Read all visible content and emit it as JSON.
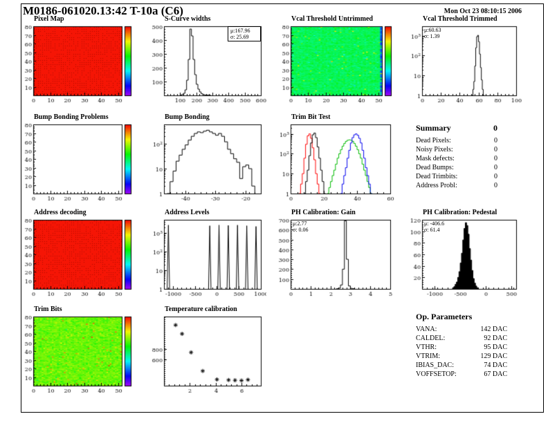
{
  "page": {
    "title": "M0186-061020.13:42 T-10a (C6)",
    "datetime": "Mon Oct 23 08:10:15 2006"
  },
  "summary": {
    "title": "Summary",
    "total": "0",
    "rows": [
      {
        "label": "Dead Pixels:",
        "value": "0"
      },
      {
        "label": "Noisy Pixels:",
        "value": "0"
      },
      {
        "label": "Mask defects:",
        "value": "0"
      },
      {
        "label": "Dead Bumps:",
        "value": "0"
      },
      {
        "label": "Dead Trimbits:",
        "value": "0"
      },
      {
        "label": "Address Probl:",
        "value": "0"
      }
    ]
  },
  "op_parameters": {
    "title": "Op. Parameters",
    "rows": [
      {
        "label": "VANA:",
        "value": "142 DAC"
      },
      {
        "label": "CALDEL:",
        "value": "92 DAC"
      },
      {
        "label": "VTHR:",
        "value": "95 DAC"
      },
      {
        "label": "VTRIM:",
        "value": "129 DAC"
      },
      {
        "label": "IBIAS_DAC:",
        "value": "74 DAC"
      },
      {
        "label": "VOFFSETOP:",
        "value": "67 DAC"
      }
    ]
  },
  "chart_data": [
    {
      "id": "pixel_map",
      "type": "heatmap",
      "title": "Pixel Map",
      "style": "uniform-red",
      "cols": 52,
      "rows": 80,
      "xlim": [
        0,
        52
      ],
      "ylim": [
        0,
        80
      ],
      "x_ticks": [
        0,
        10,
        20,
        30,
        40,
        50
      ],
      "y_ticks": [
        10,
        20,
        30,
        40,
        50,
        60,
        70,
        80
      ],
      "colorbar": true,
      "seed": 3,
      "value_color": "#ee1100"
    },
    {
      "id": "scurve_widths",
      "type": "histogram",
      "title": "S-Curve widths",
      "xlim": [
        0,
        600
      ],
      "x_ticks": [
        100,
        200,
        300,
        400,
        500,
        600
      ],
      "ylim": [
        0,
        500
      ],
      "y_ticks": [
        100,
        200,
        300,
        400,
        500
      ],
      "stats": {
        "mu": "μ:167.96",
        "sigma": "σ: 25.69"
      },
      "series": [
        {
          "color": "#000000",
          "bins": {
            "start": 100,
            "width": 10,
            "counts": [
              3,
              6,
              15,
              40,
              110,
              260,
              480,
              430,
              260,
              150,
              80,
              45,
              25,
              12,
              6,
              3,
              2,
              1,
              1
            ]
          }
        }
      ]
    },
    {
      "id": "vcal_untrimmed",
      "type": "heatmap",
      "title": "Vcal Threshold Untrimmed",
      "style": "noise",
      "base": 0.5,
      "spread": 0.07,
      "edge_cool": true,
      "cols": 52,
      "rows": 80,
      "xlim": [
        0,
        52
      ],
      "ylim": [
        0,
        80
      ],
      "x_ticks": [
        0,
        10,
        20,
        30,
        40,
        50
      ],
      "y_ticks": [
        10,
        20,
        30,
        40,
        50,
        60,
        70,
        80
      ],
      "colorbar": true,
      "seed": 17
    },
    {
      "id": "vcal_trimmed",
      "type": "histogram",
      "title": "Vcal Threshold Trimmed",
      "xlim": [
        0,
        100
      ],
      "x_ticks": [
        0,
        20,
        40,
        60,
        80,
        100
      ],
      "ylog": true,
      "ylim": [
        1,
        3000
      ],
      "y_ticks": [
        [
          1,
          "1"
        ],
        [
          10,
          "10"
        ],
        [
          100,
          "10^2"
        ],
        [
          1000,
          "10^3"
        ]
      ],
      "stats": {
        "mu": "μ:60.63",
        "sigma": "σ: 1.39"
      },
      "series": [
        {
          "color": "#000000",
          "bins": {
            "start": 53,
            "width": 1,
            "counts": [
              1,
              2,
              5,
              30,
              250,
              900,
              1050,
              500,
              120,
              25,
              6,
              2,
              1
            ]
          }
        }
      ]
    },
    {
      "id": "bump_problems",
      "type": "heatmap",
      "title": "Bump Bonding Problems",
      "style": "empty",
      "cols": 52,
      "rows": 80,
      "xlim": [
        0,
        52
      ],
      "ylim": [
        0,
        80
      ],
      "x_ticks": [
        0,
        10,
        20,
        30,
        40,
        50
      ],
      "y_ticks": [
        10,
        20,
        30,
        40,
        50,
        60,
        70,
        80
      ],
      "colorbar": true,
      "seed": 1
    },
    {
      "id": "bump_bonding",
      "type": "histogram",
      "title": "Bump Bonding",
      "xlim": [
        -47,
        -15
      ],
      "x_ticks": [
        -40,
        -30,
        -20
      ],
      "ylog": true,
      "ylim": [
        1,
        600
      ],
      "y_ticks": [
        [
          1,
          "1"
        ],
        [
          10,
          "10"
        ],
        [
          100,
          "10^2"
        ]
      ],
      "series": [
        {
          "color": "#000000",
          "bins": {
            "start": -46,
            "width": 1,
            "counts": [
              1,
              3,
              8,
              20,
              35,
              60,
              90,
              140,
              200,
              260,
              300,
              280,
              320,
              350,
              300,
              260,
              220,
              260,
              200,
              120,
              60,
              40,
              25,
              18,
              4,
              12,
              14,
              10,
              2
            ]
          }
        }
      ]
    },
    {
      "id": "trim_bit_test",
      "type": "histogram",
      "title": "Trim Bit Test",
      "xlim": [
        0,
        60
      ],
      "x_ticks": [
        0,
        20,
        40,
        60
      ],
      "ylog": true,
      "ylim": [
        1,
        3000
      ],
      "y_ticks": [
        [
          1,
          "1"
        ],
        [
          10,
          "10"
        ],
        [
          100,
          "10^2"
        ],
        [
          1000,
          "10^3"
        ]
      ],
      "series": [
        {
          "color": "#ff0000",
          "bins": {
            "start": 5,
            "width": 1,
            "counts": [
              1,
              3,
              10,
              60,
              300,
              800,
              1000,
              600,
              200,
              50,
              10,
              3,
              1
            ]
          }
        },
        {
          "color": "#000000",
          "bins": {
            "start": 8,
            "width": 1,
            "counts": [
              1,
              4,
              15,
              80,
              350,
              900,
              1100,
              650,
              220,
              60,
              15,
              4,
              1
            ]
          }
        },
        {
          "color": "#00bb00",
          "bins": {
            "start": 22,
            "width": 1,
            "counts": [
              1,
              2,
              4,
              8,
              15,
              30,
              60,
              100,
              160,
              240,
              330,
              420,
              480,
              500,
              480,
              420,
              330,
              240,
              160,
              100,
              60,
              30,
              15,
              8,
              4,
              2,
              1
            ]
          }
        },
        {
          "color": "#0000ee",
          "bins": {
            "start": 30,
            "width": 1,
            "counts": [
              1,
              3,
              8,
              20,
              60,
              150,
              350,
              650,
              900,
              1000,
              850,
              600,
              350,
              150,
              60,
              20,
              8,
              3,
              1
            ]
          }
        }
      ]
    },
    {
      "id": "address_decoding",
      "type": "heatmap",
      "title": "Address decoding",
      "style": "uniform-red",
      "cols": 52,
      "rows": 80,
      "xlim": [
        0,
        52
      ],
      "ylim": [
        0,
        80
      ],
      "x_ticks": [
        0,
        10,
        20,
        30,
        40,
        50
      ],
      "y_ticks": [
        10,
        20,
        30,
        40,
        50,
        60,
        70,
        80
      ],
      "colorbar": true,
      "seed": 9,
      "value_color": "#ee1100"
    },
    {
      "id": "address_levels",
      "type": "histogram",
      "title": "Address Levels",
      "xlim": [
        -1200,
        1000
      ],
      "x_ticks": [
        -1000,
        -500,
        0,
        500,
        1000
      ],
      "ylog": true,
      "ylim": [
        1,
        5000
      ],
      "y_ticks": [
        [
          1,
          "1"
        ],
        [
          10,
          "10"
        ],
        [
          100,
          "10^2"
        ],
        [
          1000,
          "10^3"
        ]
      ],
      "spikes": {
        "color": "#000000",
        "halfwidth": 28,
        "points": [
          [
            -1100,
            2600
          ],
          [
            -160,
            2400
          ],
          [
            50,
            2600
          ],
          [
            260,
            2500
          ],
          [
            470,
            2600
          ],
          [
            680,
            2400
          ],
          [
            890,
            2200
          ]
        ]
      }
    },
    {
      "id": "ph_gain",
      "type": "histogram",
      "title": "PH Calibration: Gain",
      "xlim": [
        0,
        5
      ],
      "x_ticks": [
        0,
        1,
        2,
        3,
        4,
        5
      ],
      "ylim": [
        0,
        700
      ],
      "y_ticks": [
        100,
        200,
        300,
        400,
        500,
        600,
        700
      ],
      "stats": {
        "mu": "μ:2.77",
        "sigma": "σ: 0.06"
      },
      "series": [
        {
          "color": "#000000",
          "bins": {
            "start": 2.3,
            "width": 0.1,
            "counts": [
              2,
              8,
              40,
              200,
              690,
              300,
              30,
              6,
              2
            ]
          }
        }
      ]
    },
    {
      "id": "ph_pedestal",
      "type": "histogram",
      "title": "PH Calibration: Pedestal",
      "xlim": [
        -1250,
        600
      ],
      "x_ticks": [
        -1000,
        -500,
        0,
        500
      ],
      "ylim": [
        0,
        120
      ],
      "y_ticks": [
        20,
        40,
        60,
        80,
        100,
        120
      ],
      "stats": {
        "mu": "μ: -406.6",
        "sigma": "σ: 61.4"
      },
      "series": [
        {
          "color": "#000000",
          "fill": true,
          "bins": {
            "start": -650,
            "width": 25,
            "counts": [
              2,
              4,
              8,
              12,
              20,
              30,
              45,
              62,
              85,
              105,
              115,
              110,
              95,
              70,
              50,
              32,
              18,
              10,
              5,
              2
            ]
          }
        }
      ]
    },
    {
      "id": "trim_bits",
      "type": "heatmap",
      "title": "Trim Bits",
      "style": "noise",
      "base": 0.66,
      "spread": 0.09,
      "cols": 52,
      "rows": 80,
      "xlim": [
        0,
        52
      ],
      "ylim": [
        0,
        80
      ],
      "x_ticks": [
        0,
        10,
        20,
        30,
        40,
        50
      ],
      "y_ticks": [
        10,
        20,
        30,
        40,
        50,
        60,
        70,
        80
      ],
      "colorbar": true,
      "seed": 29
    },
    {
      "id": "temperature",
      "type": "scatter",
      "title": "Temperature calibration",
      "xlim": [
        0,
        7.5
      ],
      "x_ticks": [
        2,
        4,
        6
      ],
      "ylim": [
        90,
        1430
      ],
      "y_ticks": [
        600,
        800
      ],
      "points": [
        [
          0.9,
          1265
        ],
        [
          1.4,
          1095
        ],
        [
          2.1,
          735
        ],
        [
          3.0,
          375
        ],
        [
          4.1,
          210
        ],
        [
          5.0,
          200
        ],
        [
          5.5,
          195
        ],
        [
          6.0,
          190
        ],
        [
          6.5,
          205
        ]
      ]
    }
  ]
}
